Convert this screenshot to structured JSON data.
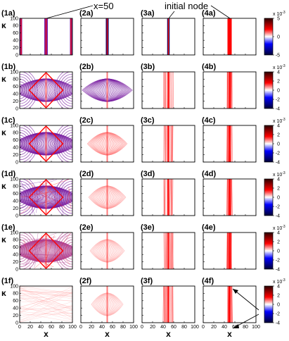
{
  "annotations": {
    "center": "x=50",
    "initial": "initial node"
  },
  "colorbar": {
    "exponent_rows": [
      "x 10",
      "x 10",
      "x 10",
      "x 10",
      "x 10",
      "x 10"
    ],
    "exponent_sup": "-3",
    "colors": {
      "high": "#2a0000",
      "mid": "#ffffff",
      "low": "#000033",
      "red": "#ff0000",
      "blue": "#0000ff"
    }
  },
  "chart_data": {
    "type": "heatmap",
    "xlabel": "x",
    "ylabel": "κ",
    "xlim": [
      0,
      100
    ],
    "ylim": [
      0,
      100
    ],
    "x_ticks": [
      0,
      20,
      40,
      60,
      80,
      100
    ],
    "y_ticks": [
      0,
      20,
      40,
      60,
      80,
      100
    ],
    "rows": [
      {
        "colorbar_ticks": [
          -5,
          0,
          5
        ],
        "colorbar_range": [
          -5,
          5
        ],
        "panels": [
          {
            "label": "(1a)",
            "pattern": "vertical-lines",
            "spread": 2,
            "color": "#7a1fa2"
          },
          {
            "label": "(2a)",
            "pattern": "vertical-lines",
            "spread": 1,
            "color": "#1a0066"
          },
          {
            "label": "(3a)",
            "pattern": "vertical-lines",
            "spread": 0.5,
            "color": "#1a0066"
          },
          {
            "label": "(4a)",
            "pattern": "vertical-lines",
            "spread": 0.3,
            "color": "#ff0000"
          }
        ]
      },
      {
        "colorbar_ticks": [
          -4,
          -2,
          0,
          2,
          4
        ],
        "colorbar_range": [
          -4,
          4
        ],
        "panels": [
          {
            "label": "(1b)",
            "pattern": "diamond-waves",
            "spread": 1,
            "color": "#7a1fa2"
          },
          {
            "label": "(2b)",
            "pattern": "diamond-waves",
            "spread": 0.7,
            "color": "#7a1fa2"
          },
          {
            "label": "(3b)",
            "pattern": "central-band",
            "spread": 14,
            "color": "#ff5a5a"
          },
          {
            "label": "(4b)",
            "pattern": "central-band",
            "spread": 7,
            "color": "#ff2020"
          }
        ]
      },
      {
        "colorbar_ticks": [
          -4,
          -2,
          0,
          2,
          4
        ],
        "colorbar_range": [
          -4,
          4
        ],
        "panels": [
          {
            "label": "(1c)",
            "pattern": "diamond-waves",
            "spread": 1.4,
            "color": "#7a1fa2"
          },
          {
            "label": "(2c)",
            "pattern": "diamond-waves",
            "spread": 0.5,
            "color": "#ff8080"
          },
          {
            "label": "(3c)",
            "pattern": "central-band",
            "spread": 14,
            "color": "#ff5a5a"
          },
          {
            "label": "(4c)",
            "pattern": "central-band",
            "spread": 7,
            "color": "#ff2020"
          }
        ]
      },
      {
        "colorbar_ticks": [
          -4,
          -2,
          0,
          2,
          4
        ],
        "colorbar_range": [
          -4,
          4
        ],
        "panels": [
          {
            "label": "(1d)",
            "pattern": "dense-mixed",
            "spread": 1.6,
            "color": "#7a1fa2"
          },
          {
            "label": "(2d)",
            "pattern": "diamond-waves",
            "spread": 0.45,
            "color": "#ff9a9a"
          },
          {
            "label": "(3d)",
            "pattern": "central-band",
            "spread": 14,
            "color": "#ff5a5a"
          },
          {
            "label": "(4d)",
            "pattern": "central-band",
            "spread": 7,
            "color": "#ff2020"
          }
        ]
      },
      {
        "colorbar_ticks": [
          -4,
          -2,
          0,
          2,
          4
        ],
        "colorbar_range": [
          -4,
          4
        ],
        "panels": [
          {
            "label": "(1e)",
            "pattern": "dense-mixed",
            "spread": 2,
            "color": "#b04090"
          },
          {
            "label": "(2e)",
            "pattern": "diamond-waves",
            "spread": 0.4,
            "color": "#ffaaaa"
          },
          {
            "label": "(3e)",
            "pattern": "central-band",
            "spread": 14,
            "color": "#ff5a5a"
          },
          {
            "label": "(4e)",
            "pattern": "central-band",
            "spread": 7,
            "color": "#ff2020"
          }
        ]
      },
      {
        "colorbar_ticks": [
          -4,
          -2,
          0,
          2,
          4
        ],
        "colorbar_range": [
          -4,
          4
        ],
        "panels": [
          {
            "label": "(1f)",
            "pattern": "faint-mixed",
            "spread": 0.3,
            "color": "#ffb0b0"
          },
          {
            "label": "(2f)",
            "pattern": "diamond-waves",
            "spread": 0.35,
            "color": "#ffb0b0"
          },
          {
            "label": "(3f)",
            "pattern": "central-band",
            "spread": 14,
            "color": "#ff5a5a"
          },
          {
            "label": "(4f)",
            "pattern": "central-band",
            "spread": 7,
            "color": "#ff2020"
          }
        ]
      }
    ]
  }
}
